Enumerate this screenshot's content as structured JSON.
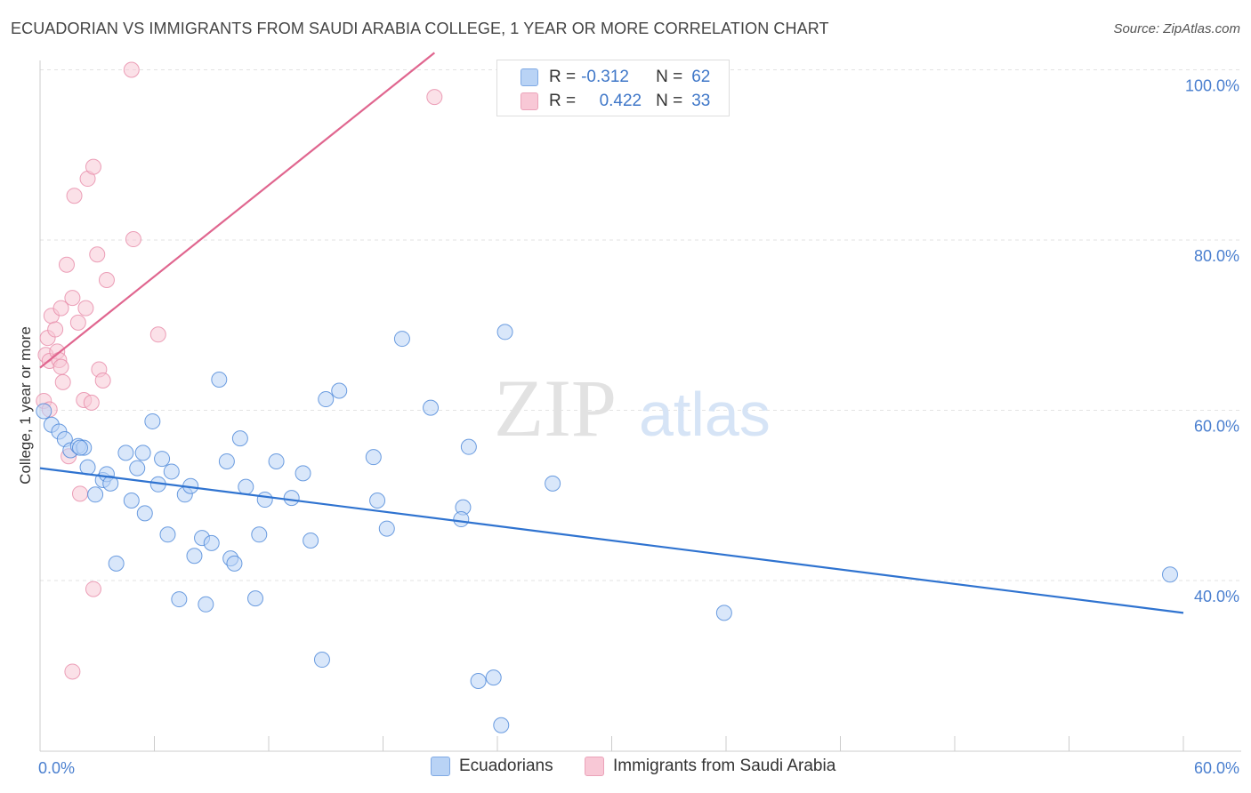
{
  "title": "ECUADORIAN VS IMMIGRANTS FROM SAUDI ARABIA COLLEGE, 1 YEAR OR MORE CORRELATION CHART",
  "source": "Source: ZipAtlas.com",
  "watermark": {
    "zip": "ZIP",
    "atlas": "atlas"
  },
  "colors": {
    "blue": "#4a86d8",
    "blue_fill": "#b9d3f5",
    "blue_line": "#2f73d0",
    "pink": "#e78aa8",
    "pink_fill": "#f8c8d6",
    "pink_line": "#e0668f",
    "axis_label": "#4a7fcf"
  },
  "legend": {
    "r_label": "R =",
    "n_label": "N =",
    "rows": [
      {
        "r": "-0.312",
        "n": "62"
      },
      {
        "r": "0.422",
        "n": "33"
      }
    ]
  },
  "bottom_legend": [
    "Ecuadorians",
    "Immigrants from Saudi Arabia"
  ],
  "chart_data": {
    "type": "scatter",
    "title": "ECUADORIAN VS IMMIGRANTS FROM SAUDI ARABIA COLLEGE, 1 YEAR OR MORE CORRELATION CHART",
    "xlabel": "",
    "ylabel": "College, 1 year or more",
    "xlim": [
      0,
      60
    ],
    "ylim": [
      22,
      102
    ],
    "x_tick_labels": [
      "0.0%",
      "60.0%"
    ],
    "y_ticks": [
      40,
      60,
      80,
      100
    ],
    "y_tick_labels": [
      "40.0%",
      "60.0%",
      "80.0%",
      "100.0%"
    ],
    "grid": true,
    "legend_position": "top-center",
    "series": [
      {
        "name": "Ecuadorians",
        "color": "#4a86d8",
        "trend": {
          "x": [
            0,
            60
          ],
          "y": [
            53.2,
            36.2
          ]
        },
        "points": [
          [
            0.2,
            59.9
          ],
          [
            0.6,
            58.3
          ],
          [
            1.0,
            57.5
          ],
          [
            1.3,
            56.6
          ],
          [
            1.6,
            55.3
          ],
          [
            2.0,
            55.8
          ],
          [
            2.3,
            55.6
          ],
          [
            2.5,
            53.3
          ],
          [
            2.9,
            50.1
          ],
          [
            3.3,
            51.8
          ],
          [
            3.5,
            52.5
          ],
          [
            3.7,
            51.4
          ],
          [
            4.0,
            42.0
          ],
          [
            4.5,
            55.0
          ],
          [
            4.8,
            49.4
          ],
          [
            5.1,
            53.2
          ],
          [
            5.4,
            55.0
          ],
          [
            5.5,
            47.9
          ],
          [
            5.9,
            58.7
          ],
          [
            6.2,
            51.3
          ],
          [
            6.4,
            54.3
          ],
          [
            6.7,
            45.4
          ],
          [
            6.9,
            52.8
          ],
          [
            7.3,
            37.8
          ],
          [
            7.6,
            50.1
          ],
          [
            7.9,
            51.1
          ],
          [
            8.1,
            42.9
          ],
          [
            8.5,
            45.0
          ],
          [
            8.7,
            37.2
          ],
          [
            9.0,
            44.4
          ],
          [
            9.4,
            63.6
          ],
          [
            9.8,
            54.0
          ],
          [
            10.0,
            42.6
          ],
          [
            10.2,
            42.0
          ],
          [
            10.5,
            56.7
          ],
          [
            10.8,
            51.0
          ],
          [
            11.3,
            37.9
          ],
          [
            11.5,
            45.4
          ],
          [
            11.8,
            49.5
          ],
          [
            12.4,
            54.0
          ],
          [
            13.2,
            49.7
          ],
          [
            13.8,
            52.6
          ],
          [
            14.2,
            44.7
          ],
          [
            14.8,
            30.7
          ],
          [
            15.0,
            61.3
          ],
          [
            15.7,
            62.3
          ],
          [
            17.5,
            54.5
          ],
          [
            17.7,
            49.4
          ],
          [
            18.2,
            46.1
          ],
          [
            19.0,
            68.4
          ],
          [
            20.5,
            60.3
          ],
          [
            22.5,
            55.7
          ],
          [
            22.2,
            48.6
          ],
          [
            22.1,
            47.2
          ],
          [
            23.0,
            28.2
          ],
          [
            23.8,
            28.6
          ],
          [
            24.2,
            23.0
          ],
          [
            24.4,
            69.2
          ],
          [
            26.9,
            51.4
          ],
          [
            35.9,
            36.2
          ],
          [
            59.3,
            40.7
          ],
          [
            2.1,
            55.6
          ]
        ]
      },
      {
        "name": "Immigrants from Saudi Arabia",
        "color": "#e78aa8",
        "trend": {
          "x": [
            0,
            20.7
          ],
          "y": [
            65.0,
            102
          ]
        },
        "points": [
          [
            0.2,
            61.1
          ],
          [
            0.3,
            66.5
          ],
          [
            0.4,
            68.5
          ],
          [
            0.5,
            65.8
          ],
          [
            0.6,
            71.1
          ],
          [
            0.8,
            69.5
          ],
          [
            0.9,
            66.9
          ],
          [
            1.0,
            65.9
          ],
          [
            1.1,
            72.0
          ],
          [
            1.1,
            65.1
          ],
          [
            1.2,
            63.3
          ],
          [
            1.4,
            77.1
          ],
          [
            1.5,
            54.6
          ],
          [
            1.7,
            73.2
          ],
          [
            1.8,
            85.2
          ],
          [
            2.0,
            70.3
          ],
          [
            2.1,
            50.2
          ],
          [
            2.3,
            61.2
          ],
          [
            2.4,
            72.0
          ],
          [
            2.5,
            87.2
          ],
          [
            2.7,
            60.9
          ],
          [
            2.8,
            88.6
          ],
          [
            2.8,
            39.0
          ],
          [
            3.0,
            78.3
          ],
          [
            3.1,
            64.8
          ],
          [
            3.3,
            63.5
          ],
          [
            3.5,
            75.3
          ],
          [
            1.7,
            29.3
          ],
          [
            4.8,
            100.0
          ],
          [
            4.9,
            80.1
          ],
          [
            6.2,
            68.9
          ],
          [
            20.7,
            96.8
          ],
          [
            0.5,
            60.1
          ]
        ]
      }
    ]
  }
}
